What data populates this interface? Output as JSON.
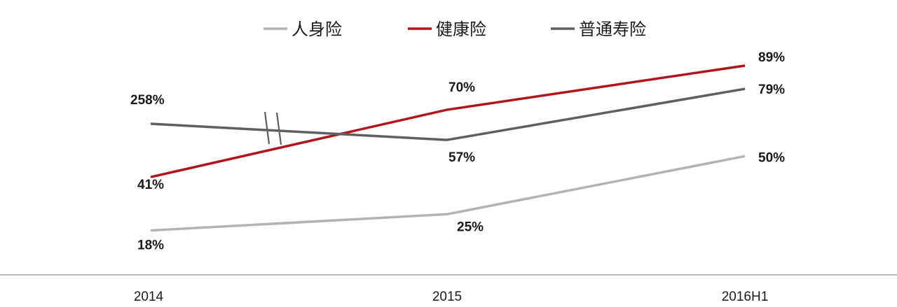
{
  "chart_data": {
    "type": "line",
    "categories": [
      "2014",
      "2015",
      "2016H1"
    ],
    "series": [
      {
        "name": "人身险",
        "values": [
          18,
          25,
          50
        ],
        "labels": [
          "18%",
          "25%",
          "50%"
        ],
        "color": "#b3b3b3"
      },
      {
        "name": "健康险",
        "values": [
          41,
          70,
          89
        ],
        "labels": [
          "41%",
          "70%",
          "89%"
        ],
        "color": "#b3141b"
      },
      {
        "name": "普通寿险",
        "values": [
          258,
          57,
          79
        ],
        "labels": [
          "258%",
          "57%",
          "79%"
        ],
        "color": "#5f5f5f",
        "axis_break": true
      }
    ],
    "legend": "top-center",
    "grid": false,
    "title": "",
    "xlabel": "",
    "ylabel": ""
  }
}
